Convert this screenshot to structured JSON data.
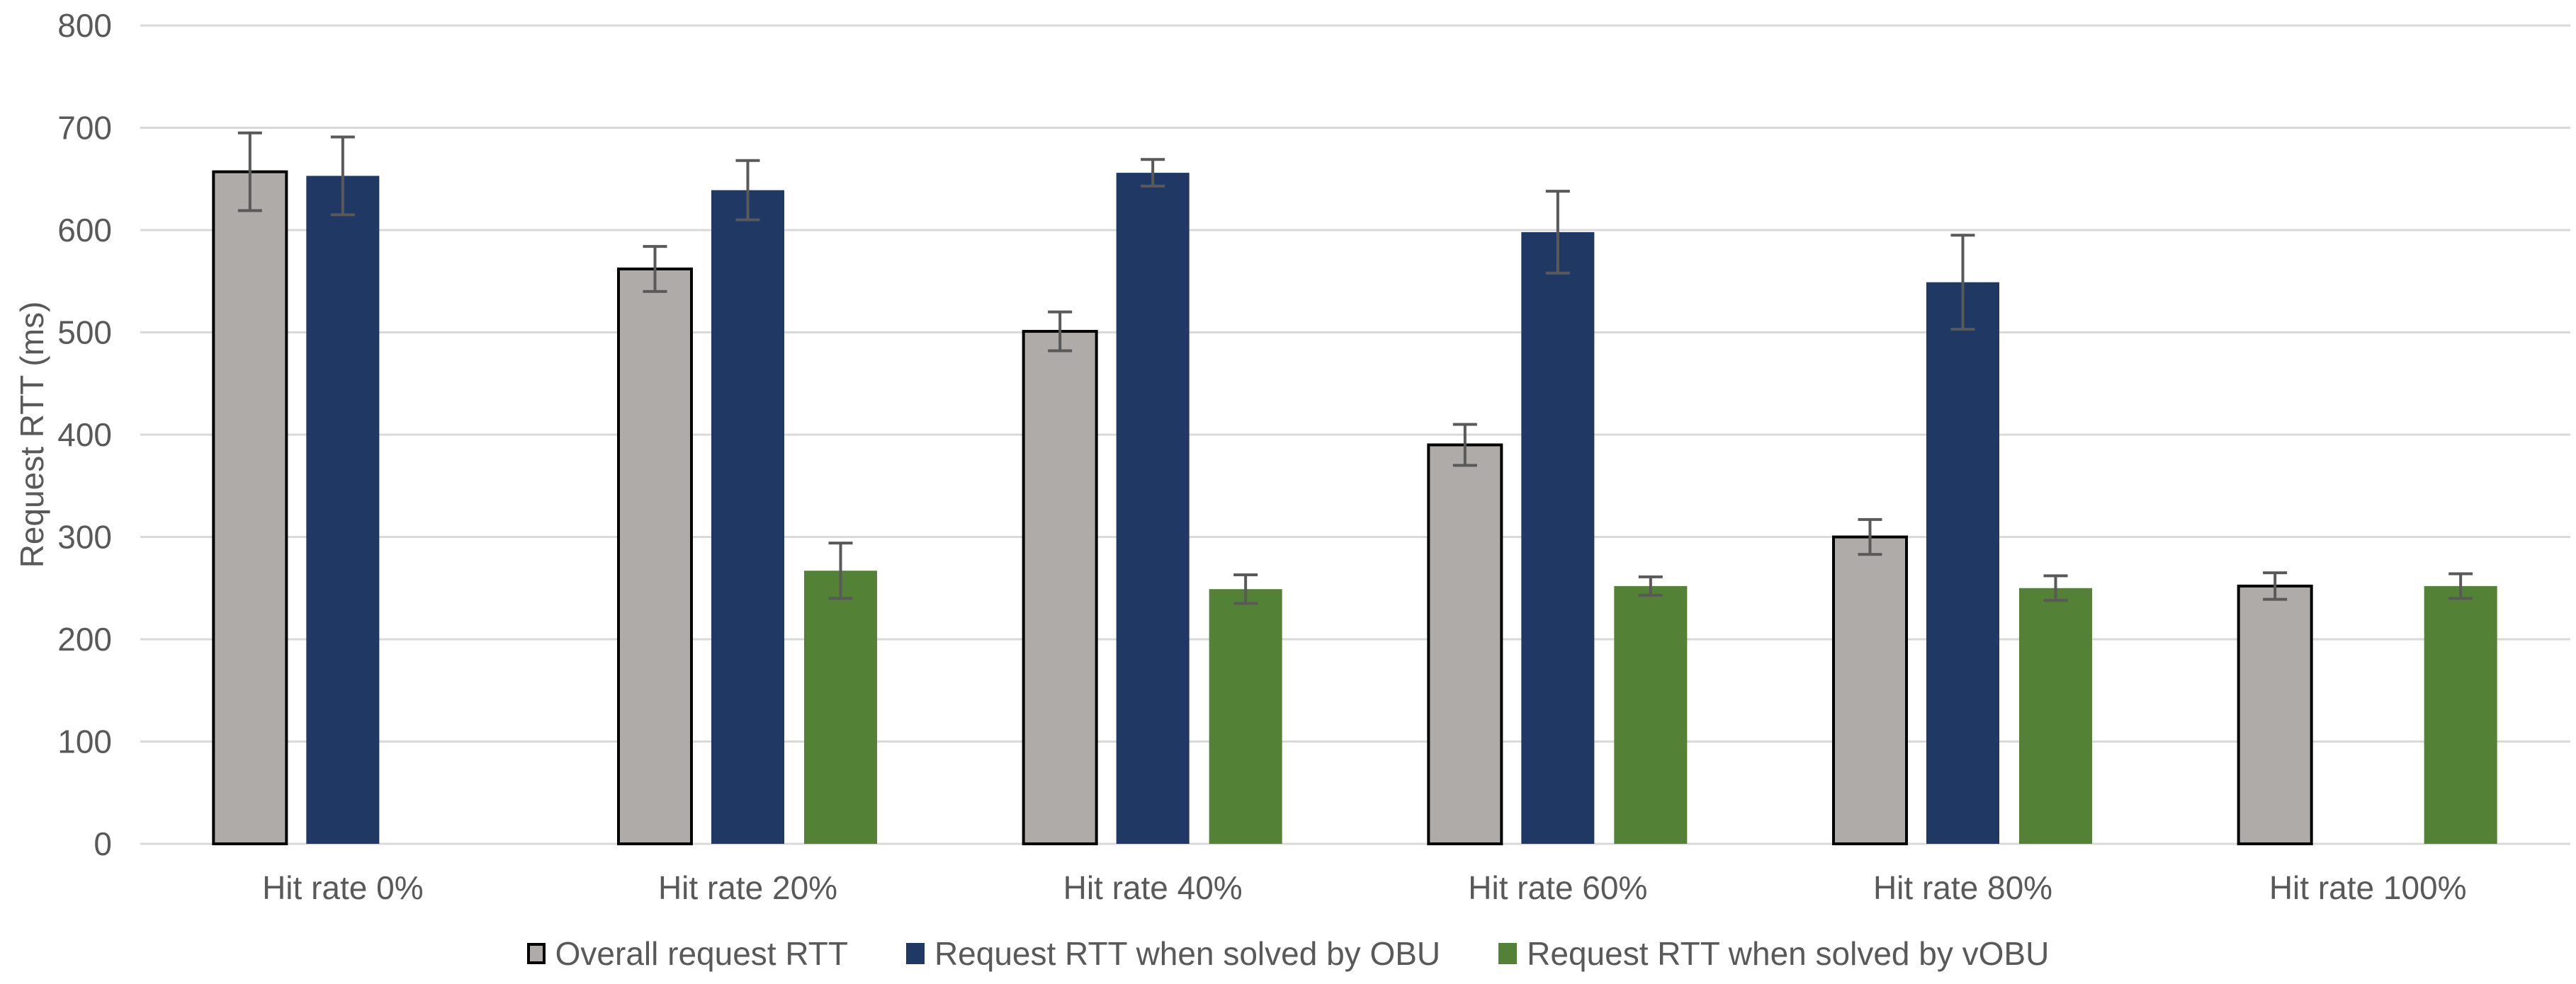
{
  "chart_data": {
    "type": "bar",
    "title": "",
    "xlabel": "",
    "ylabel": "Request RTT (ms)",
    "ylim": [
      0,
      800
    ],
    "yticks": [
      0,
      100,
      200,
      300,
      400,
      500,
      600,
      700,
      800
    ],
    "grid": true,
    "legend_position": "bottom",
    "categories": [
      "Hit rate 0%",
      "Hit rate 20%",
      "Hit rate 40%",
      "Hit rate 60%",
      "Hit rate 80%",
      "Hit rate 100%"
    ],
    "series": [
      {
        "name": "Overall request RTT",
        "color": "#AFABA8",
        "border_color": "#000000",
        "values": [
          657,
          562,
          501,
          390,
          300,
          252
        ],
        "errors": [
          38,
          22,
          19,
          20,
          17,
          13
        ]
      },
      {
        "name": "Request RTT when solved by OBU",
        "color": "#1F3864",
        "border_color": null,
        "values": [
          653,
          639,
          656,
          598,
          549,
          null
        ],
        "errors": [
          38,
          29,
          13,
          40,
          46,
          null
        ]
      },
      {
        "name": "Request RTT when solved by vOBU",
        "color": "#538135",
        "border_color": null,
        "values": [
          null,
          267,
          249,
          252,
          250,
          252
        ],
        "errors": [
          null,
          27,
          14,
          9,
          12,
          12
        ]
      }
    ],
    "colors": {
      "gridline": "#D9D9D9",
      "axis_line": "#D9D9D9",
      "error_bar": "#595959",
      "text": "#595959",
      "background": "#FFFFFF"
    }
  }
}
